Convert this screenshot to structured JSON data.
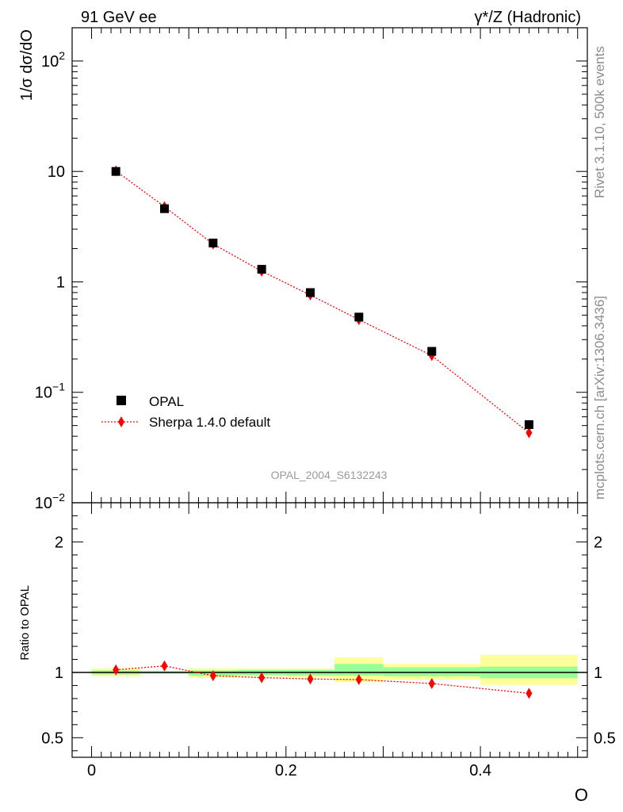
{
  "header": {
    "left_title": "91 GeV ee",
    "right_title": "γ*/Z (Hadronic)"
  },
  "side_labels": {
    "rivet": "Rivet 3.1.10,  500k events",
    "mcplots": "mcplots.cern.ch [arXiv:1306.3436]"
  },
  "watermark": "OPAL_2004_S6132243",
  "legend": {
    "data_label": "OPAL",
    "mc_label": "Sherpa 1.4.0 default"
  },
  "chart_data": [
    {
      "type": "scatter",
      "panel": "main",
      "yscale": "log",
      "ylabel": "1/σ dσ/dO",
      "xlabel": "O",
      "xlim": [
        -0.02,
        0.51
      ],
      "ylim": [
        0.01,
        200
      ],
      "y_tick_labels": [
        "10^-2",
        "10^-1",
        "1",
        "10",
        "10^2"
      ],
      "x": [
        0.025,
        0.075,
        0.125,
        0.175,
        0.225,
        0.275,
        0.35,
        0.45
      ],
      "series": [
        {
          "name": "OPAL",
          "marker": "square",
          "color": "#000000",
          "values": [
            10.0,
            4.6,
            2.25,
            1.3,
            0.8,
            0.48,
            0.235,
            0.051
          ]
        },
        {
          "name": "Sherpa 1.4.0 default",
          "marker": "diamond",
          "line": "dotted",
          "color": "#ff0000",
          "values": [
            10.1,
            4.8,
            2.2,
            1.25,
            0.76,
            0.455,
            0.215,
            0.043
          ]
        }
      ]
    },
    {
      "type": "line",
      "panel": "ratio",
      "ylabel": "Ratio to OPAL",
      "xlabel": "O",
      "xlim": [
        -0.02,
        0.51
      ],
      "ylim": [
        0.35,
        2.3
      ],
      "x_tick_labels": [
        "0",
        "0.2",
        "0.4"
      ],
      "y_tick_labels": [
        "0.5",
        "1",
        "2"
      ],
      "x": [
        0.025,
        0.075,
        0.125,
        0.175,
        0.225,
        0.275,
        0.35,
        0.45
      ],
      "bin_edges": [
        0.0,
        0.05,
        0.1,
        0.15,
        0.2,
        0.25,
        0.3,
        0.4,
        0.5
      ],
      "uncertainty_bands": {
        "stat_green": [
          [
            0.985,
            1.015
          ],
          [
            0.99,
            1.01
          ],
          [
            0.975,
            1.015
          ],
          [
            0.98,
            1.02
          ],
          [
            0.975,
            1.02
          ],
          [
            0.975,
            1.065
          ],
          [
            0.97,
            1.04
          ],
          [
            0.955,
            1.045
          ]
        ],
        "total_yellow": [
          [
            0.97,
            1.03
          ],
          [
            0.99,
            1.01
          ],
          [
            0.96,
            1.03
          ],
          [
            0.97,
            1.03
          ],
          [
            0.96,
            1.03
          ],
          [
            0.925,
            1.115
          ],
          [
            0.945,
            1.065
          ],
          [
            0.905,
            1.135
          ]
        ]
      },
      "reference": 1.0,
      "series": [
        {
          "name": "Sherpa 1.4.0 default",
          "color": "#ff0000",
          "values": [
            1.02,
            1.05,
            0.975,
            0.96,
            0.95,
            0.945,
            0.915,
            0.84
          ]
        }
      ]
    }
  ]
}
